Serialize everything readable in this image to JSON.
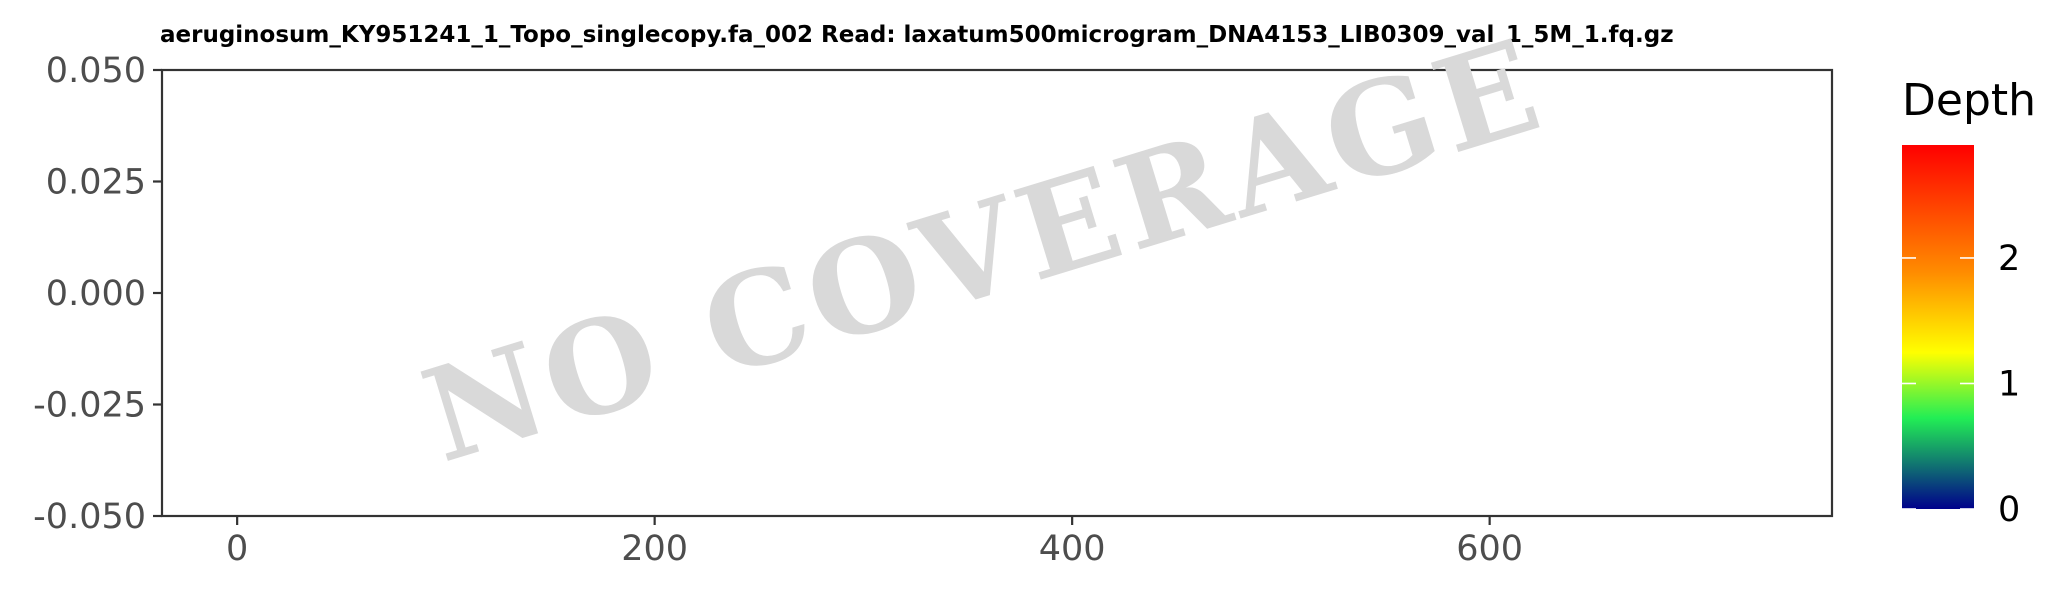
{
  "chart_data": {
    "type": "heatmap",
    "title": "aeruginosum_KY951241_1_Topo_singlecopy.fa_002   Read: laxatum500microgram_DNA4153_LIB0309_val_1_5M_1.fq.gz",
    "xlabel": "",
    "ylabel": "",
    "xlim": [
      -36,
      764
    ],
    "ylim": [
      -0.05,
      0.05
    ],
    "x_ticks": [
      0,
      200,
      400,
      600
    ],
    "x_tick_labels": [
      "0",
      "200",
      "400",
      "600"
    ],
    "y_ticks": [
      0.05,
      0.025,
      0.0,
      -0.025,
      -0.05
    ],
    "y_tick_labels": [
      "0.050",
      "0.025",
      "0.000",
      "-0.025",
      "-0.050"
    ],
    "series": [],
    "grid": false,
    "annotation": "NO COVERAGE",
    "legend": {
      "title": "Depth",
      "placement": "right",
      "range": [
        0,
        2.9
      ],
      "ticks": [
        0,
        1,
        2
      ],
      "tick_labels": [
        "0",
        "1",
        "2"
      ],
      "colors": [
        "#00008b",
        "#22ee55",
        "#ffff00",
        "#ff8c00",
        "#ff0000"
      ],
      "stops": [
        0.0,
        0.25,
        0.43,
        0.65,
        1.0
      ]
    },
    "colors": {
      "axis": "#333333",
      "tick_text": "#4d4d4d",
      "watermark": "#d9d9d9",
      "background": "#ffffff"
    }
  }
}
